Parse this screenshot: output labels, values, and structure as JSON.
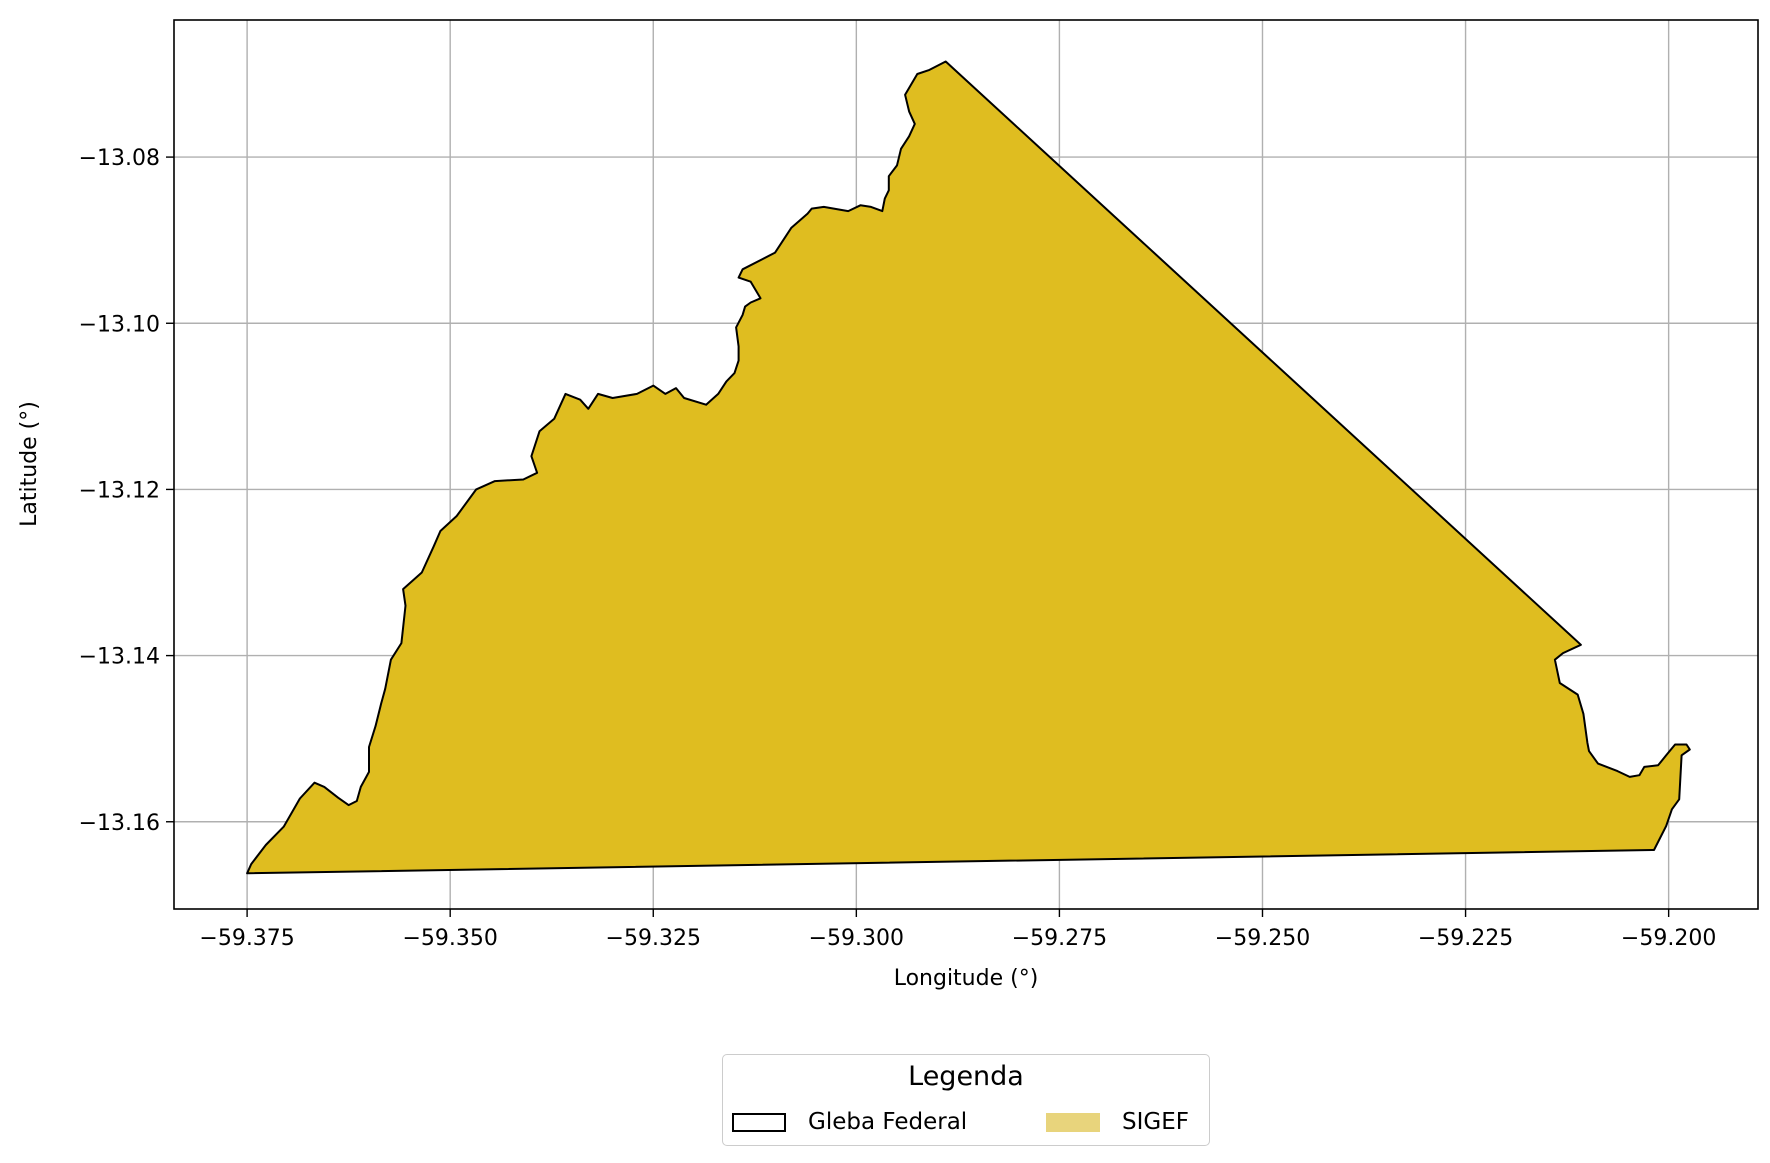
{
  "chart_data": {
    "type": "map",
    "title": "",
    "xlabel": "Longitude (°)",
    "ylabel": "Latitude (°)",
    "xlim": [
      -59.384,
      -59.189
    ],
    "ylim": [
      -13.1705,
      -13.0635
    ],
    "grid": true,
    "x_ticks": [
      -59.375,
      -59.35,
      -59.325,
      -59.3,
      -59.275,
      -59.25,
      -59.225,
      -59.2
    ],
    "x_tick_labels": [
      "−59.375",
      "−59.350",
      "−59.325",
      "−59.300",
      "−59.275",
      "−59.250",
      "−59.225",
      "−59.200"
    ],
    "y_ticks": [
      -13.08,
      -13.1,
      -13.12,
      -13.14,
      -13.16
    ],
    "y_tick_labels": [
      "−13.08",
      "−13.10",
      "−13.12",
      "−13.14",
      "−13.16"
    ],
    "layers": [
      {
        "name": "SIGEF",
        "fill": "#dfbd20",
        "legend_fill": "#e8d47c",
        "polygon": [
          [
            -59.289,
            -13.0685
          ],
          [
            -59.2108,
            -13.1387
          ],
          [
            -59.213,
            -13.1397
          ],
          [
            -59.214,
            -13.1405
          ],
          [
            -59.2134,
            -13.1433
          ],
          [
            -59.2112,
            -13.1447
          ],
          [
            -59.2105,
            -13.147
          ],
          [
            -59.21,
            -13.1505
          ],
          [
            -59.2098,
            -13.1515
          ],
          [
            -59.2087,
            -13.153
          ],
          [
            -59.2063,
            -13.1539
          ],
          [
            -59.2048,
            -13.1546
          ],
          [
            -59.2036,
            -13.1544
          ],
          [
            -59.203,
            -13.1534
          ],
          [
            -59.2013,
            -13.1532
          ],
          [
            -59.2003,
            -13.152
          ],
          [
            -59.1992,
            -13.1507
          ],
          [
            -59.1978,
            -13.1507
          ],
          [
            -59.1974,
            -13.1513
          ],
          [
            -59.1984,
            -13.152
          ],
          [
            -59.1987,
            -13.1573
          ],
          [
            -59.1996,
            -13.1585
          ],
          [
            -59.2003,
            -13.1605
          ],
          [
            -59.2018,
            -13.1634
          ],
          [
            -59.375,
            -13.1662
          ],
          [
            -59.3745,
            -13.1651
          ],
          [
            -59.3727,
            -13.1628
          ],
          [
            -59.3705,
            -13.1606
          ],
          [
            -59.3685,
            -13.1572
          ],
          [
            -59.3667,
            -13.1553
          ],
          [
            -59.3655,
            -13.1558
          ],
          [
            -59.3638,
            -13.1571
          ],
          [
            -59.3625,
            -13.158
          ],
          [
            -59.3615,
            -13.1575
          ],
          [
            -59.361,
            -13.1558
          ],
          [
            -59.36,
            -13.154
          ],
          [
            -59.36,
            -13.151
          ],
          [
            -59.3592,
            -13.1485
          ],
          [
            -59.3585,
            -13.1458
          ],
          [
            -59.358,
            -13.144
          ],
          [
            -59.3573,
            -13.1405
          ],
          [
            -59.356,
            -13.1385
          ],
          [
            -59.3555,
            -13.134
          ],
          [
            -59.3558,
            -13.132
          ],
          [
            -59.3535,
            -13.13
          ],
          [
            -59.352,
            -13.1268
          ],
          [
            -59.3512,
            -13.125
          ],
          [
            -59.3492,
            -13.1232
          ],
          [
            -59.3468,
            -13.12
          ],
          [
            -59.3445,
            -13.119
          ],
          [
            -59.341,
            -13.1188
          ],
          [
            -59.3393,
            -13.118
          ],
          [
            -59.34,
            -13.116
          ],
          [
            -59.339,
            -13.113
          ],
          [
            -59.3372,
            -13.1115
          ],
          [
            -59.3358,
            -13.1085
          ],
          [
            -59.334,
            -13.1092
          ],
          [
            -59.333,
            -13.1103
          ],
          [
            -59.3318,
            -13.1085
          ],
          [
            -59.33,
            -13.109
          ],
          [
            -59.327,
            -13.1085
          ],
          [
            -59.325,
            -13.1075
          ],
          [
            -59.3235,
            -13.1085
          ],
          [
            -59.3222,
            -13.1078
          ],
          [
            -59.3212,
            -13.109
          ],
          [
            -59.3185,
            -13.1098
          ],
          [
            -59.317,
            -13.1085
          ],
          [
            -59.316,
            -13.107
          ],
          [
            -59.315,
            -13.106
          ],
          [
            -59.3145,
            -13.1045
          ],
          [
            -59.3145,
            -13.1028
          ],
          [
            -59.3148,
            -13.1005
          ],
          [
            -59.314,
            -13.099
          ],
          [
            -59.3137,
            -13.098
          ],
          [
            -59.313,
            -13.0975
          ],
          [
            -59.3118,
            -13.097
          ],
          [
            -59.313,
            -13.095
          ],
          [
            -59.3145,
            -13.0945
          ],
          [
            -59.314,
            -13.0935
          ],
          [
            -59.31,
            -13.0915
          ],
          [
            -59.308,
            -13.0885
          ],
          [
            -59.306,
            -13.0868
          ],
          [
            -59.3055,
            -13.0862
          ],
          [
            -59.304,
            -13.086
          ],
          [
            -59.301,
            -13.0865
          ],
          [
            -59.2995,
            -13.0858
          ],
          [
            -59.2982,
            -13.086
          ],
          [
            -59.2968,
            -13.0865
          ],
          [
            -59.2965,
            -13.085
          ],
          [
            -59.296,
            -13.084
          ],
          [
            -59.296,
            -13.0823
          ],
          [
            -59.295,
            -13.081
          ],
          [
            -59.2945,
            -13.079
          ],
          [
            -59.2935,
            -13.0775
          ],
          [
            -59.2928,
            -13.076
          ],
          [
            -59.2935,
            -13.0745
          ],
          [
            -59.294,
            -13.0725
          ],
          [
            -59.2925,
            -13.07
          ],
          [
            -59.291,
            -13.0695
          ]
        ]
      },
      {
        "name": "Gleba Federal",
        "fill": "none",
        "stroke": "#000000"
      }
    ]
  },
  "legend": {
    "title": "Legenda",
    "placement": "bottom-center (outside axes)",
    "entries": [
      {
        "label": "Gleba Federal",
        "swatch_fill": "#ffffff",
        "swatch_border": "#000000"
      },
      {
        "label": "SIGEF",
        "swatch_fill": "#e8d47c",
        "swatch_border": "#e8d47c"
      }
    ]
  }
}
